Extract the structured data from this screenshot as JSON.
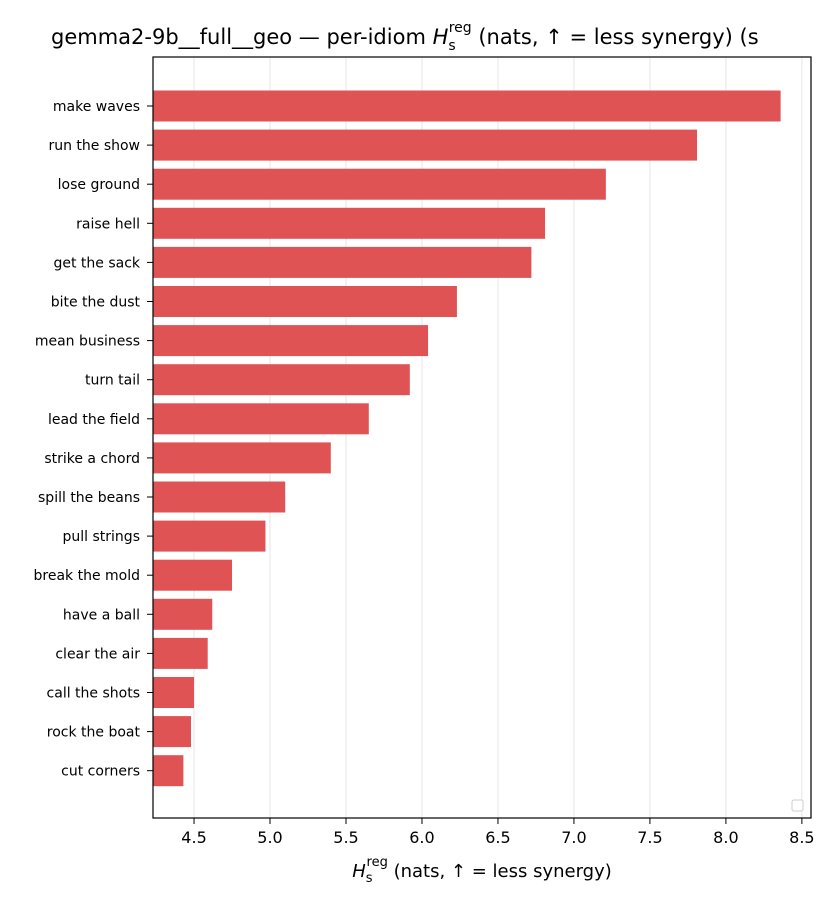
{
  "chart_data": {
    "type": "bar",
    "orientation": "horizontal",
    "title_main": "gemma2-9b__full__geo — per-idiom ",
    "title_suffix": " (nats, ↑ = less synergy) (s",
    "xlabel_suffix": " (nats, ↑ = less synergy)",
    "symbol": {
      "base": "H",
      "sub": "s",
      "sup": "reg"
    },
    "categories": [
      "make waves",
      "run the show",
      "lose ground",
      "raise hell",
      "get the sack",
      "bite the dust",
      "mean business",
      "turn tail",
      "lead the field",
      "strike a chord",
      "spill the beans",
      "pull strings",
      "break the mold",
      "have a ball",
      "clear the air",
      "call the shots",
      "rock the boat",
      "cut corners"
    ],
    "values": [
      8.36,
      7.81,
      7.21,
      6.81,
      6.72,
      6.23,
      6.04,
      5.92,
      5.65,
      5.4,
      5.1,
      4.97,
      4.75,
      4.62,
      4.59,
      4.5,
      4.48,
      4.43
    ],
    "xlim": [
      4.23,
      8.56
    ],
    "xticks": [
      "4.5",
      "5.0",
      "5.5",
      "6.0",
      "6.5",
      "7.0",
      "7.5",
      "8.0",
      "8.5"
    ],
    "grid": "x",
    "legend": "bottom-right (empty)",
    "bar_color": "#e05355"
  }
}
